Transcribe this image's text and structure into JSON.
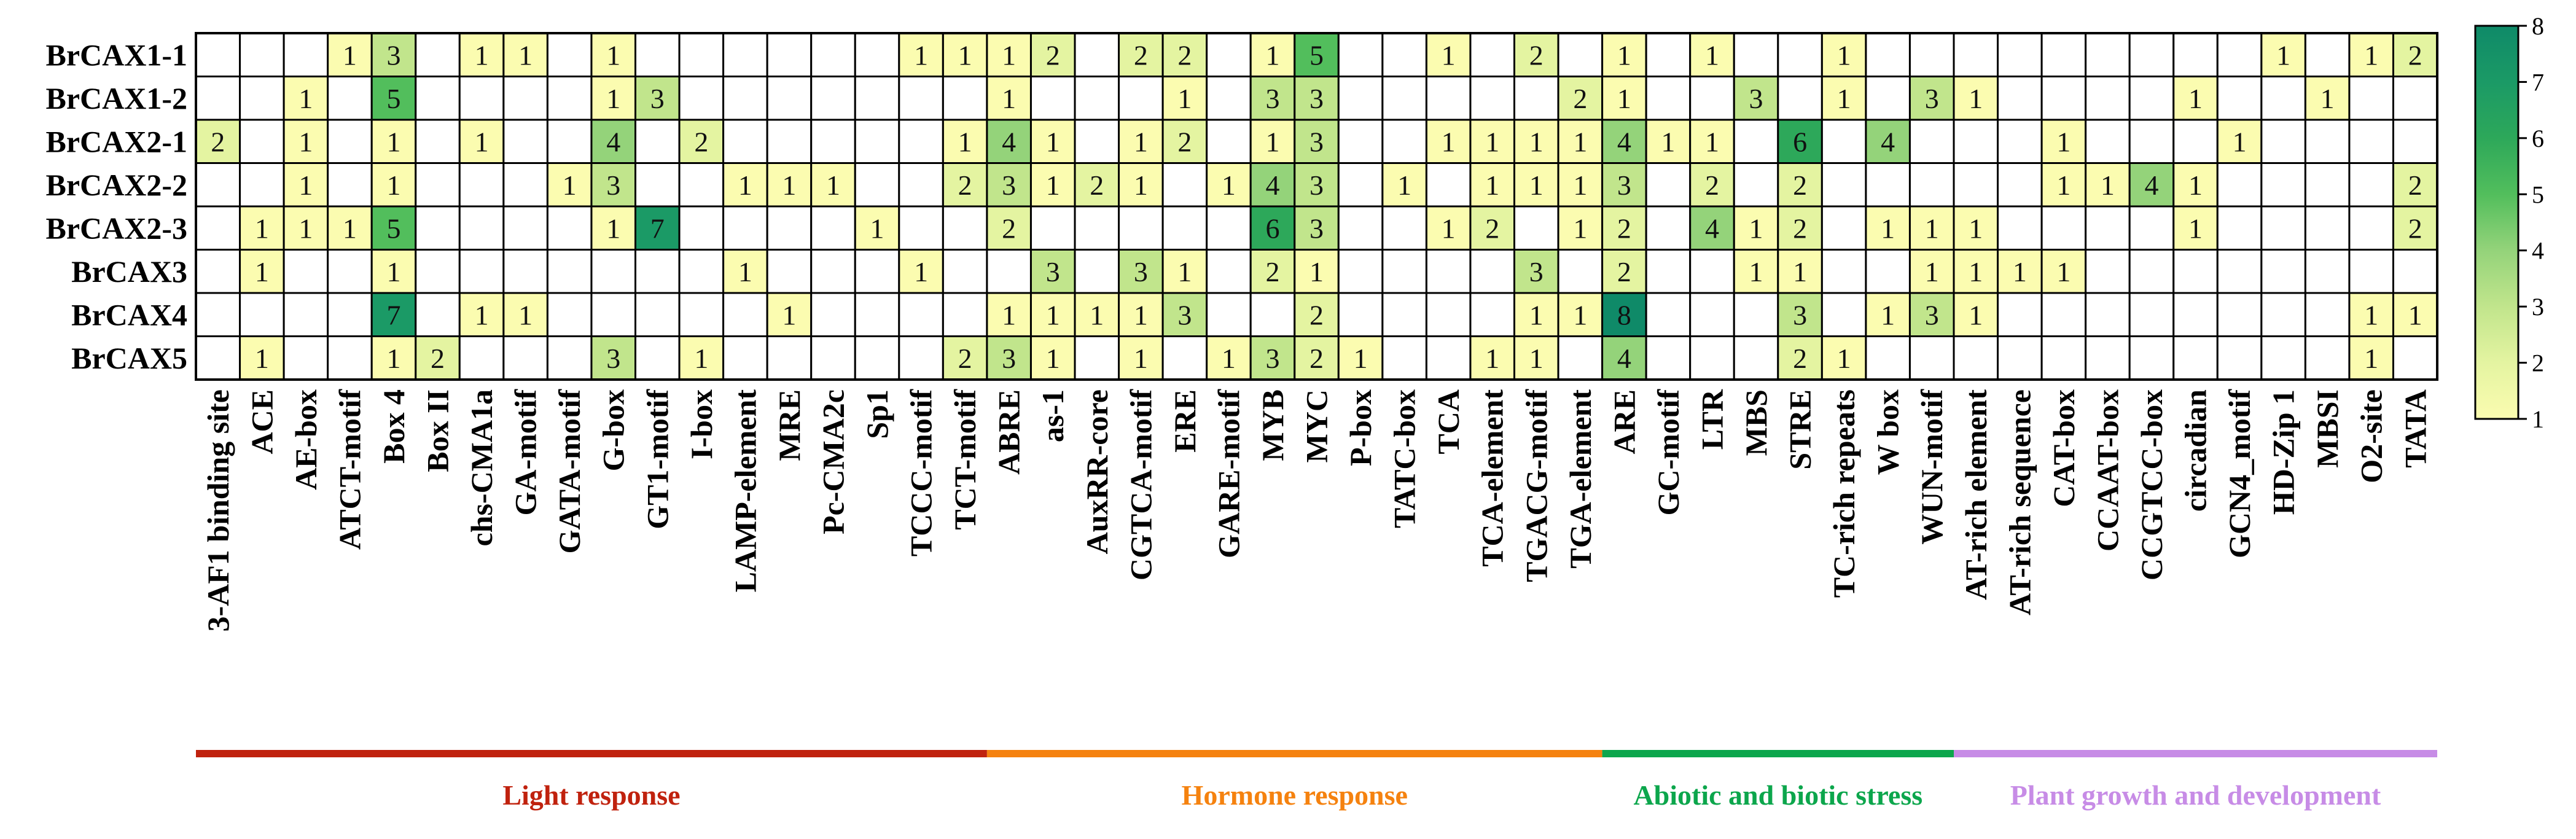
{
  "chart_data": {
    "type": "heatmap",
    "rows": [
      "BrCAX1-1",
      "BrCAX1-2",
      "BrCAX2-1",
      "BrCAX2-2",
      "BrCAX2-3",
      "BrCAX3",
      "BrCAX4",
      "BrCAX5"
    ],
    "columns": [
      "3-AF1 binding site",
      "ACE",
      "AE-box",
      "ATCT-motif",
      "Box 4",
      "Box II",
      "chs-CMA1a",
      "GA-motif",
      "GATA-motif",
      "G-box",
      "GT1-motif",
      "I-box",
      "LAMP-element",
      "MRE",
      "Pc-CMA2c",
      "Sp1",
      "TCCC-motif",
      "TCT-motif",
      "ABRE",
      "as-1",
      "AuxRR-core",
      "CGTCA-motif",
      "ERE",
      "GARE-motif",
      "MYB",
      "MYC",
      "P-box",
      "TATC-box",
      "TCA",
      "TCA-element",
      "TGACG-motif",
      "TGA-element",
      "ARE",
      "GC-motif",
      "LTR",
      "MBS",
      "STRE",
      "TC-rich repeats",
      "W box",
      "WUN-motif",
      "AT-rich element",
      "AT-rich sequence",
      "CAT-box",
      "CCAAT-box",
      "CCGTCC-box",
      "circadian",
      "GCN4_motif",
      "HD-Zip 1",
      "MBSI",
      "O2-site",
      "TATA"
    ],
    "values": [
      [
        0,
        0,
        0,
        1,
        3,
        0,
        1,
        1,
        0,
        1,
        0,
        0,
        0,
        0,
        0,
        0,
        1,
        1,
        1,
        2,
        0,
        2,
        2,
        0,
        1,
        5,
        0,
        0,
        1,
        0,
        2,
        0,
        1,
        0,
        1,
        0,
        0,
        1,
        0,
        0,
        0,
        0,
        0,
        0,
        0,
        0,
        0,
        1,
        0,
        1,
        2
      ],
      [
        0,
        0,
        1,
        0,
        5,
        0,
        0,
        0,
        0,
        1,
        3,
        0,
        0,
        0,
        0,
        0,
        0,
        0,
        1,
        0,
        0,
        0,
        1,
        0,
        3,
        3,
        0,
        0,
        0,
        0,
        0,
        2,
        1,
        0,
        0,
        3,
        0,
        1,
        0,
        3,
        1,
        0,
        0,
        0,
        0,
        1,
        0,
        0,
        1,
        0,
        0
      ],
      [
        2,
        0,
        1,
        0,
        1,
        0,
        1,
        0,
        0,
        4,
        0,
        2,
        0,
        0,
        0,
        0,
        0,
        1,
        4,
        1,
        0,
        1,
        2,
        0,
        1,
        3,
        0,
        0,
        1,
        1,
        1,
        1,
        4,
        1,
        1,
        0,
        6,
        0,
        4,
        0,
        0,
        0,
        1,
        0,
        0,
        0,
        1,
        0,
        0,
        0,
        0
      ],
      [
        0,
        0,
        1,
        0,
        1,
        0,
        0,
        0,
        1,
        3,
        0,
        0,
        1,
        1,
        1,
        0,
        0,
        2,
        3,
        1,
        2,
        1,
        0,
        1,
        4,
        3,
        0,
        1,
        0,
        1,
        1,
        1,
        3,
        0,
        2,
        0,
        2,
        0,
        0,
        0,
        0,
        0,
        1,
        1,
        4,
        1,
        0,
        0,
        0,
        0,
        2
      ],
      [
        0,
        1,
        1,
        1,
        5,
        0,
        0,
        0,
        0,
        1,
        7,
        0,
        0,
        0,
        0,
        1,
        0,
        0,
        2,
        0,
        0,
        0,
        0,
        0,
        6,
        3,
        0,
        0,
        1,
        2,
        0,
        1,
        2,
        0,
        4,
        1,
        2,
        0,
        1,
        1,
        1,
        0,
        0,
        0,
        0,
        1,
        0,
        0,
        0,
        0,
        2
      ],
      [
        0,
        1,
        0,
        0,
        1,
        0,
        0,
        0,
        0,
        0,
        0,
        0,
        1,
        0,
        0,
        0,
        1,
        0,
        0,
        3,
        0,
        3,
        1,
        0,
        2,
        1,
        0,
        0,
        0,
        0,
        3,
        0,
        2,
        0,
        0,
        1,
        1,
        0,
        0,
        1,
        1,
        1,
        1,
        0,
        0,
        0,
        0,
        0,
        0,
        0,
        0
      ],
      [
        0,
        0,
        0,
        0,
        7,
        0,
        1,
        1,
        0,
        0,
        0,
        0,
        0,
        1,
        0,
        0,
        0,
        0,
        1,
        1,
        1,
        1,
        3,
        0,
        0,
        2,
        0,
        0,
        0,
        0,
        1,
        1,
        8,
        0,
        0,
        0,
        3,
        0,
        1,
        3,
        1,
        0,
        0,
        0,
        0,
        0,
        0,
        0,
        0,
        1,
        1
      ],
      [
        0,
        1,
        0,
        0,
        1,
        2,
        0,
        0,
        0,
        3,
        0,
        1,
        0,
        0,
        0,
        0,
        0,
        2,
        3,
        1,
        0,
        1,
        0,
        1,
        3,
        2,
        1,
        0,
        0,
        1,
        1,
        0,
        4,
        0,
        0,
        0,
        2,
        1,
        0,
        0,
        0,
        0,
        0,
        0,
        0,
        0,
        0,
        0,
        0,
        1,
        0
      ]
    ],
    "zero_means_empty": true,
    "colorbar": {
      "min": 1,
      "max": 8,
      "ticks": [
        1,
        2,
        3,
        4,
        5,
        6,
        7,
        8
      ]
    },
    "colorscale": [
      "#fbfcb0",
      "#e4f4a1",
      "#c1e58c",
      "#94d37a",
      "#52be5c",
      "#2da85a",
      "#1b9a66",
      "#0f8a68"
    ],
    "groups": [
      {
        "label": "Light response",
        "start": 0,
        "end": 17,
        "color": "#c0220e"
      },
      {
        "label": "Hormone response",
        "start": 18,
        "end": 31,
        "color": "#f5820f"
      },
      {
        "label": "Abiotic and biotic stress",
        "start": 32,
        "end": 39,
        "color": "#0ca64c"
      },
      {
        "label": "Plant growth and development",
        "start": 40,
        "end": 50,
        "color": "#c78ce6"
      }
    ]
  }
}
